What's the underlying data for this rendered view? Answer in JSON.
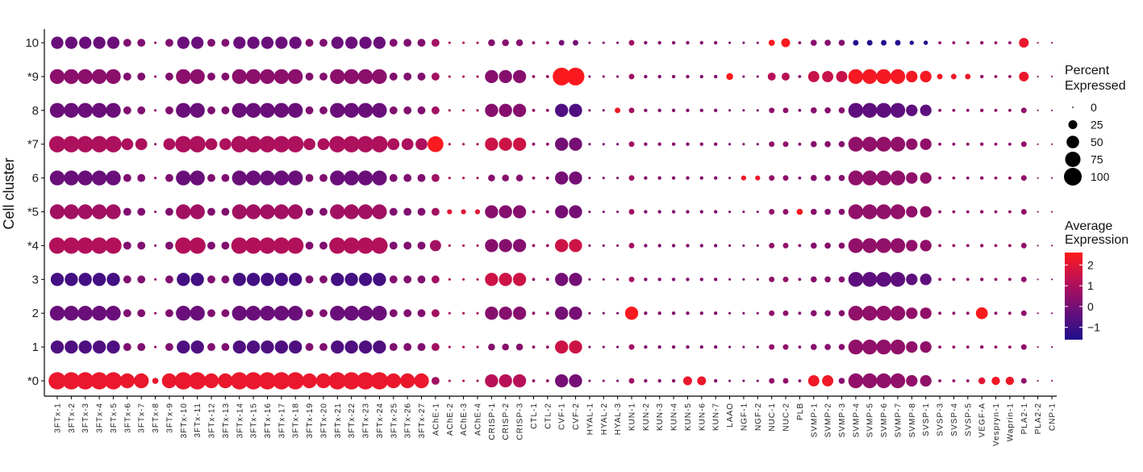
{
  "chart_data": {
    "type": "dotplot",
    "ylabel": "Cell cluster",
    "y_categories": [
      "*0",
      "1",
      "2",
      "3",
      "*4",
      "*5",
      "6",
      "*7",
      "8",
      "*9",
      "10"
    ],
    "x_categories": [
      "3FTx-1",
      "3FTx-2",
      "3FTx-3",
      "3FTx-4",
      "3FTx-5",
      "3FTx-6",
      "3FTx-7",
      "3FTx-8",
      "3FTx-9",
      "3FTx-10",
      "3FTx-11",
      "3FTx-12",
      "3FTx-13",
      "3FTx-14",
      "3FTx-15",
      "3FTx-16",
      "3FTx-17",
      "3FTx-18",
      "3FTx-19",
      "3FTx-20",
      "3FTx-21",
      "3FTx-22",
      "3FTx-23",
      "3FTx-24",
      "3FTx-25",
      "3FTx-26",
      "3FTx-27",
      "AChE-1",
      "AChE-2",
      "AChE-3",
      "AChE-4",
      "CRISP-1",
      "CRISP-2",
      "CRISP-3",
      "CTL-1",
      "CTL-2",
      "CVF-1",
      "CVF-2",
      "HYAL-1",
      "HYAL-2",
      "HYAL-3",
      "KUN-1",
      "KUN-2",
      "KUN-3",
      "KUN-4",
      "KUN-5",
      "KUN-6",
      "KUN-7",
      "LAAO",
      "NGF-1",
      "NGF-2",
      "NUC-1",
      "NUC-2",
      "PLB",
      "SVMP-1",
      "SVMP-2",
      "SVMP-3",
      "SVMP-4",
      "SVMP-5",
      "SVMP-6",
      "SVMP-7",
      "SVMP-8",
      "SVSP-1",
      "SVSP-3",
      "SVSP-4",
      "SVSP-5",
      "VEGF-A",
      "Vespryn-1",
      "Waprin-1",
      "PLA2-1",
      "PLA2-2",
      "CNP-1"
    ],
    "size_legend": {
      "title_lines": [
        "Percent",
        "Expressed"
      ],
      "values": [
        0,
        25,
        50,
        75,
        100
      ]
    },
    "color_legend": {
      "title_lines": [
        "Average",
        "Expression"
      ],
      "ticks": [
        "2",
        "1",
        "0",
        "−1"
      ],
      "range": [
        -1.6,
        2.6
      ],
      "colors": [
        "#1e0f8c",
        "#6a0f7a",
        "#b81058",
        "#ff1a1a"
      ]
    },
    "grid": false,
    "size_range": [
      0,
      100
    ],
    "note_values": "percent expressed (size) and average expression (color) per cluster x gene"
  }
}
